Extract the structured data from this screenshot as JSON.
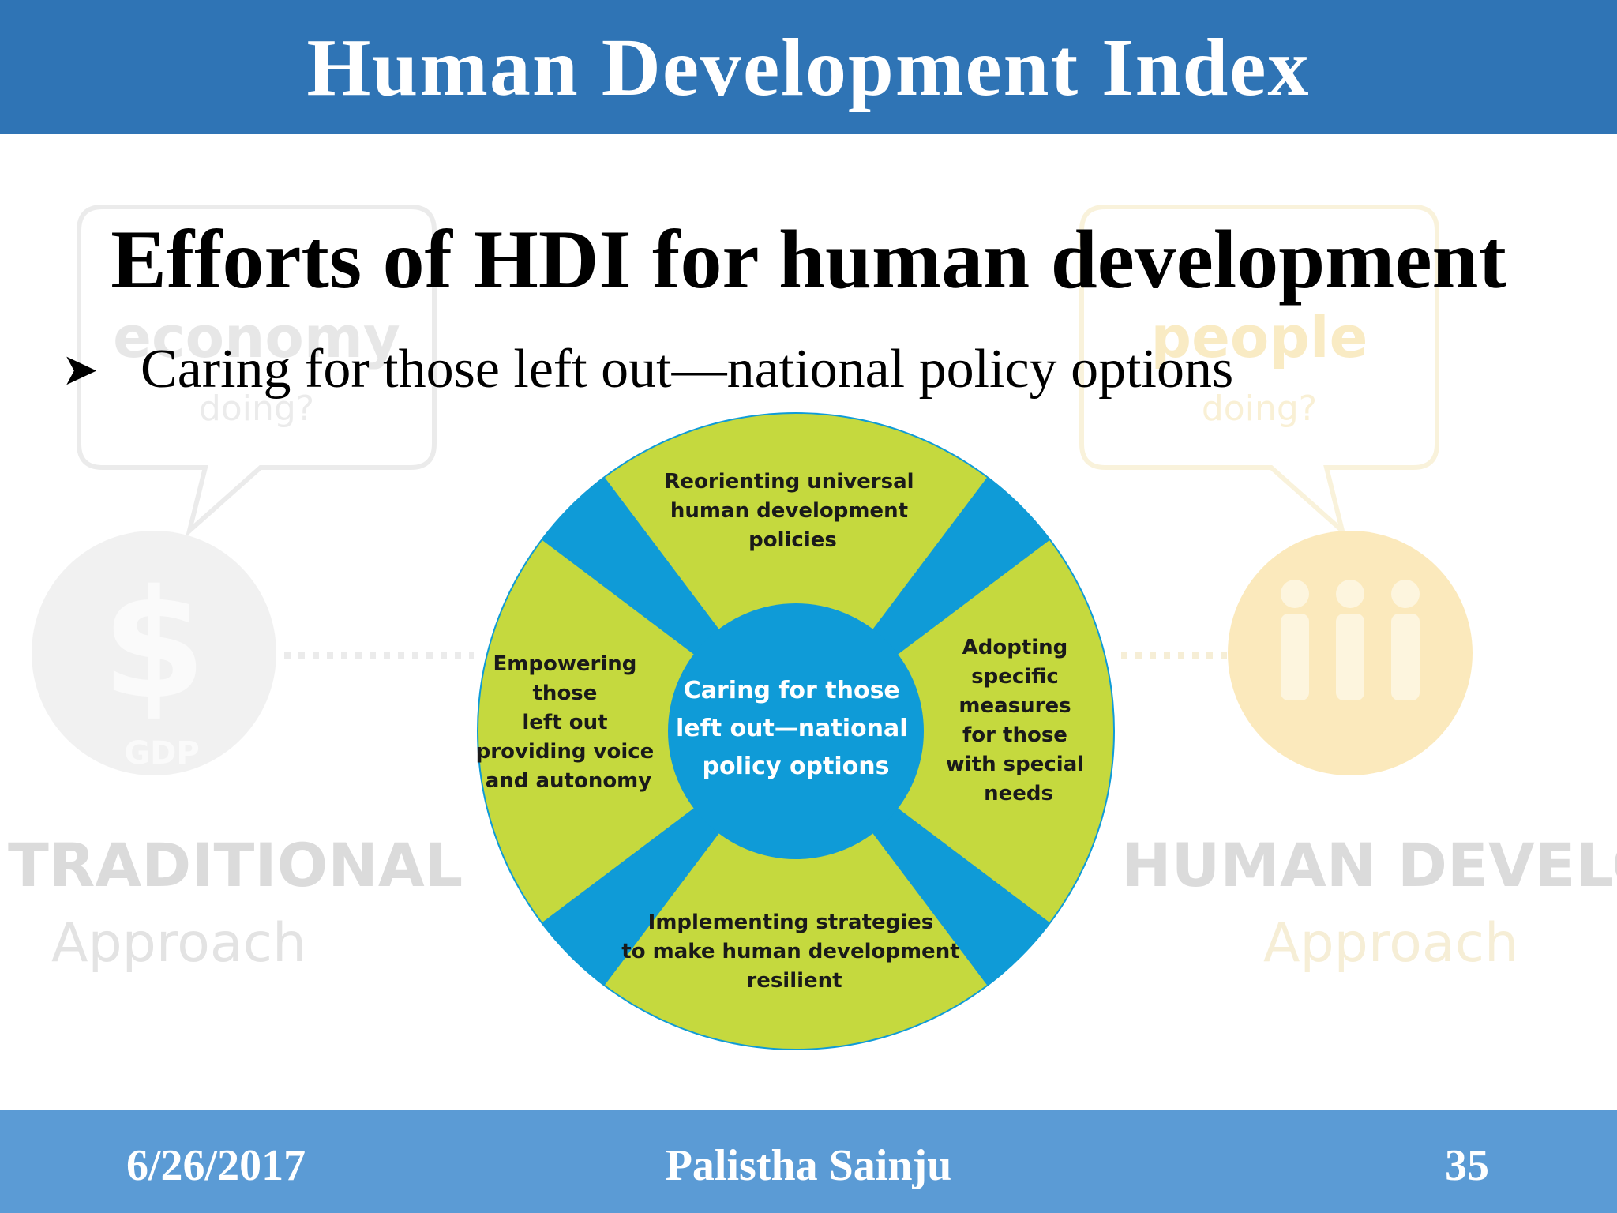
{
  "header": {
    "title": "Human Development Index"
  },
  "slide": {
    "subtitle": "Efforts of HDI for human development",
    "bullet": "Caring for those left out—national policy options"
  },
  "background": {
    "left_text_1": "economy",
    "left_text_2": "doing?",
    "left_symbol": "$",
    "left_symbol_caption": "GDP",
    "left_label": "TRADITIONAL",
    "left_sublabel": "Approach",
    "right_text_1": "people",
    "right_text_2": "doing?",
    "right_label": "HUMAN DEVELOPMENT",
    "right_sublabel": "Approach"
  },
  "diagram": {
    "center": [
      "Caring for those",
      "left out—national",
      "policy options"
    ],
    "top": [
      "Reorienting universal",
      "human development",
      "policies"
    ],
    "right": [
      "Adopting",
      "specific",
      "measures",
      "for those",
      "with special",
      "needs"
    ],
    "bottom": [
      "Implementing strategies",
      "to make human development",
      "resilient"
    ],
    "left": [
      "Empowering",
      "those",
      "left out",
      "providing voice",
      "and autonomy"
    ],
    "colors": {
      "segment": "#c5d93e",
      "accent": "#0f9bd7",
      "text_dark": "#1a1a1a",
      "text_light": "#ffffff"
    }
  },
  "footer": {
    "date": "6/26/2017",
    "author": "Palistha Sainju",
    "page": "35"
  }
}
